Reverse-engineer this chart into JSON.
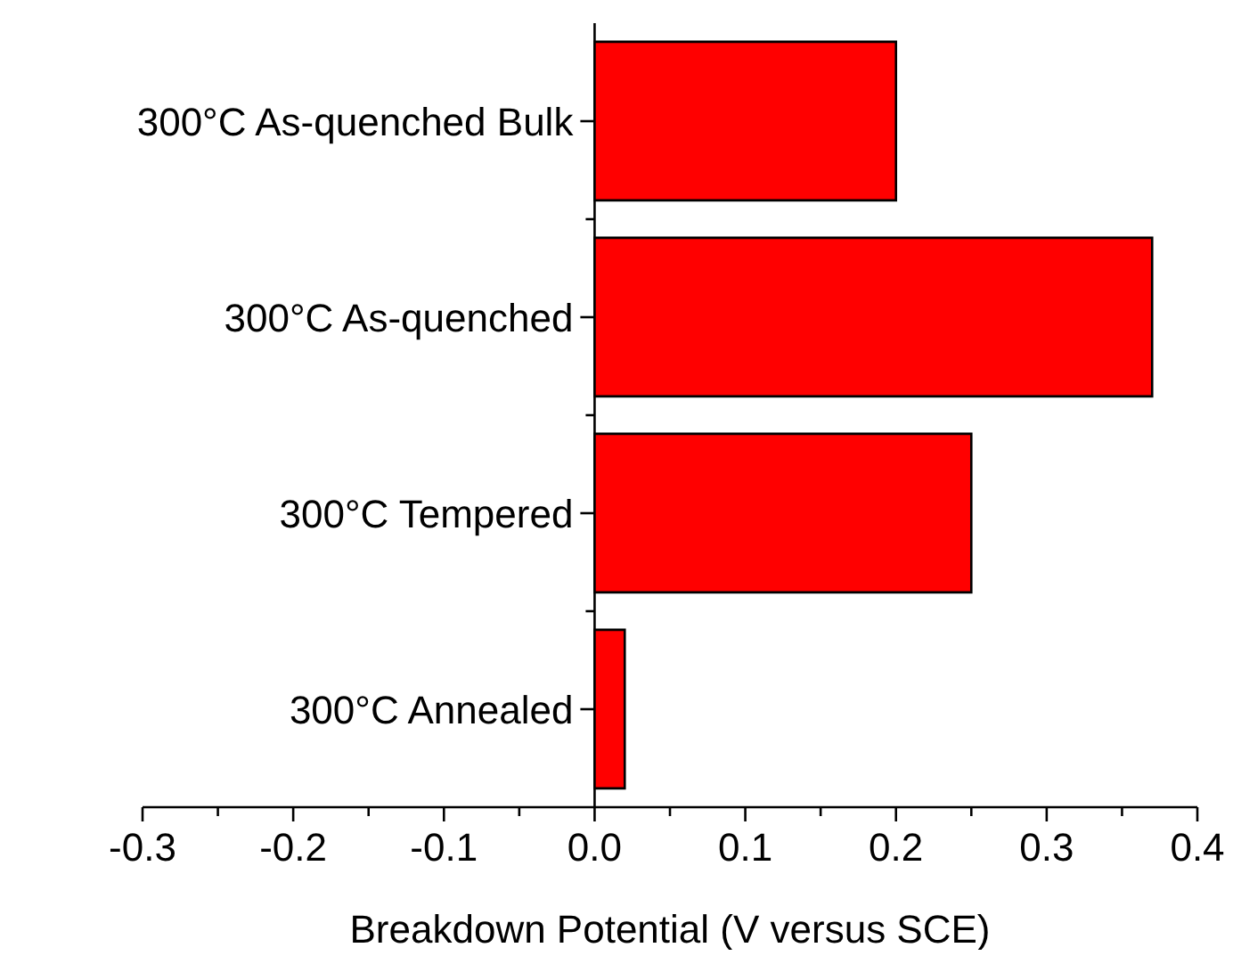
{
  "chart_data": {
    "type": "bar",
    "orientation": "horizontal",
    "xlabel": "Breakdown Potential (V versus SCE)",
    "categories": [
      "300°C As-quenched Bulk",
      "300°C As-quenched",
      "300°C Tempered",
      "300°C Annealed"
    ],
    "values": [
      0.2,
      0.37,
      0.25,
      0.02
    ],
    "color": "#ff0000",
    "xlim": [
      -0.3,
      0.4
    ],
    "xticks": [
      {
        "value": -0.3,
        "label": "-0.3"
      },
      {
        "value": -0.25,
        "label": null
      },
      {
        "value": -0.2,
        "label": "-0.2"
      },
      {
        "value": -0.15,
        "label": null
      },
      {
        "value": -0.1,
        "label": "-0.1"
      },
      {
        "value": -0.05,
        "label": null
      },
      {
        "value": 0,
        "label": "0.0"
      },
      {
        "value": 0.05,
        "label": null
      },
      {
        "value": 0.1,
        "label": "0.1"
      },
      {
        "value": 0.15,
        "label": null
      },
      {
        "value": 0.2,
        "label": "0.2"
      },
      {
        "value": 0.25,
        "label": null
      },
      {
        "value": 0.3,
        "label": "0.3"
      },
      {
        "value": 0.35,
        "label": null
      },
      {
        "value": 0.4,
        "label": "0.4"
      }
    ]
  }
}
